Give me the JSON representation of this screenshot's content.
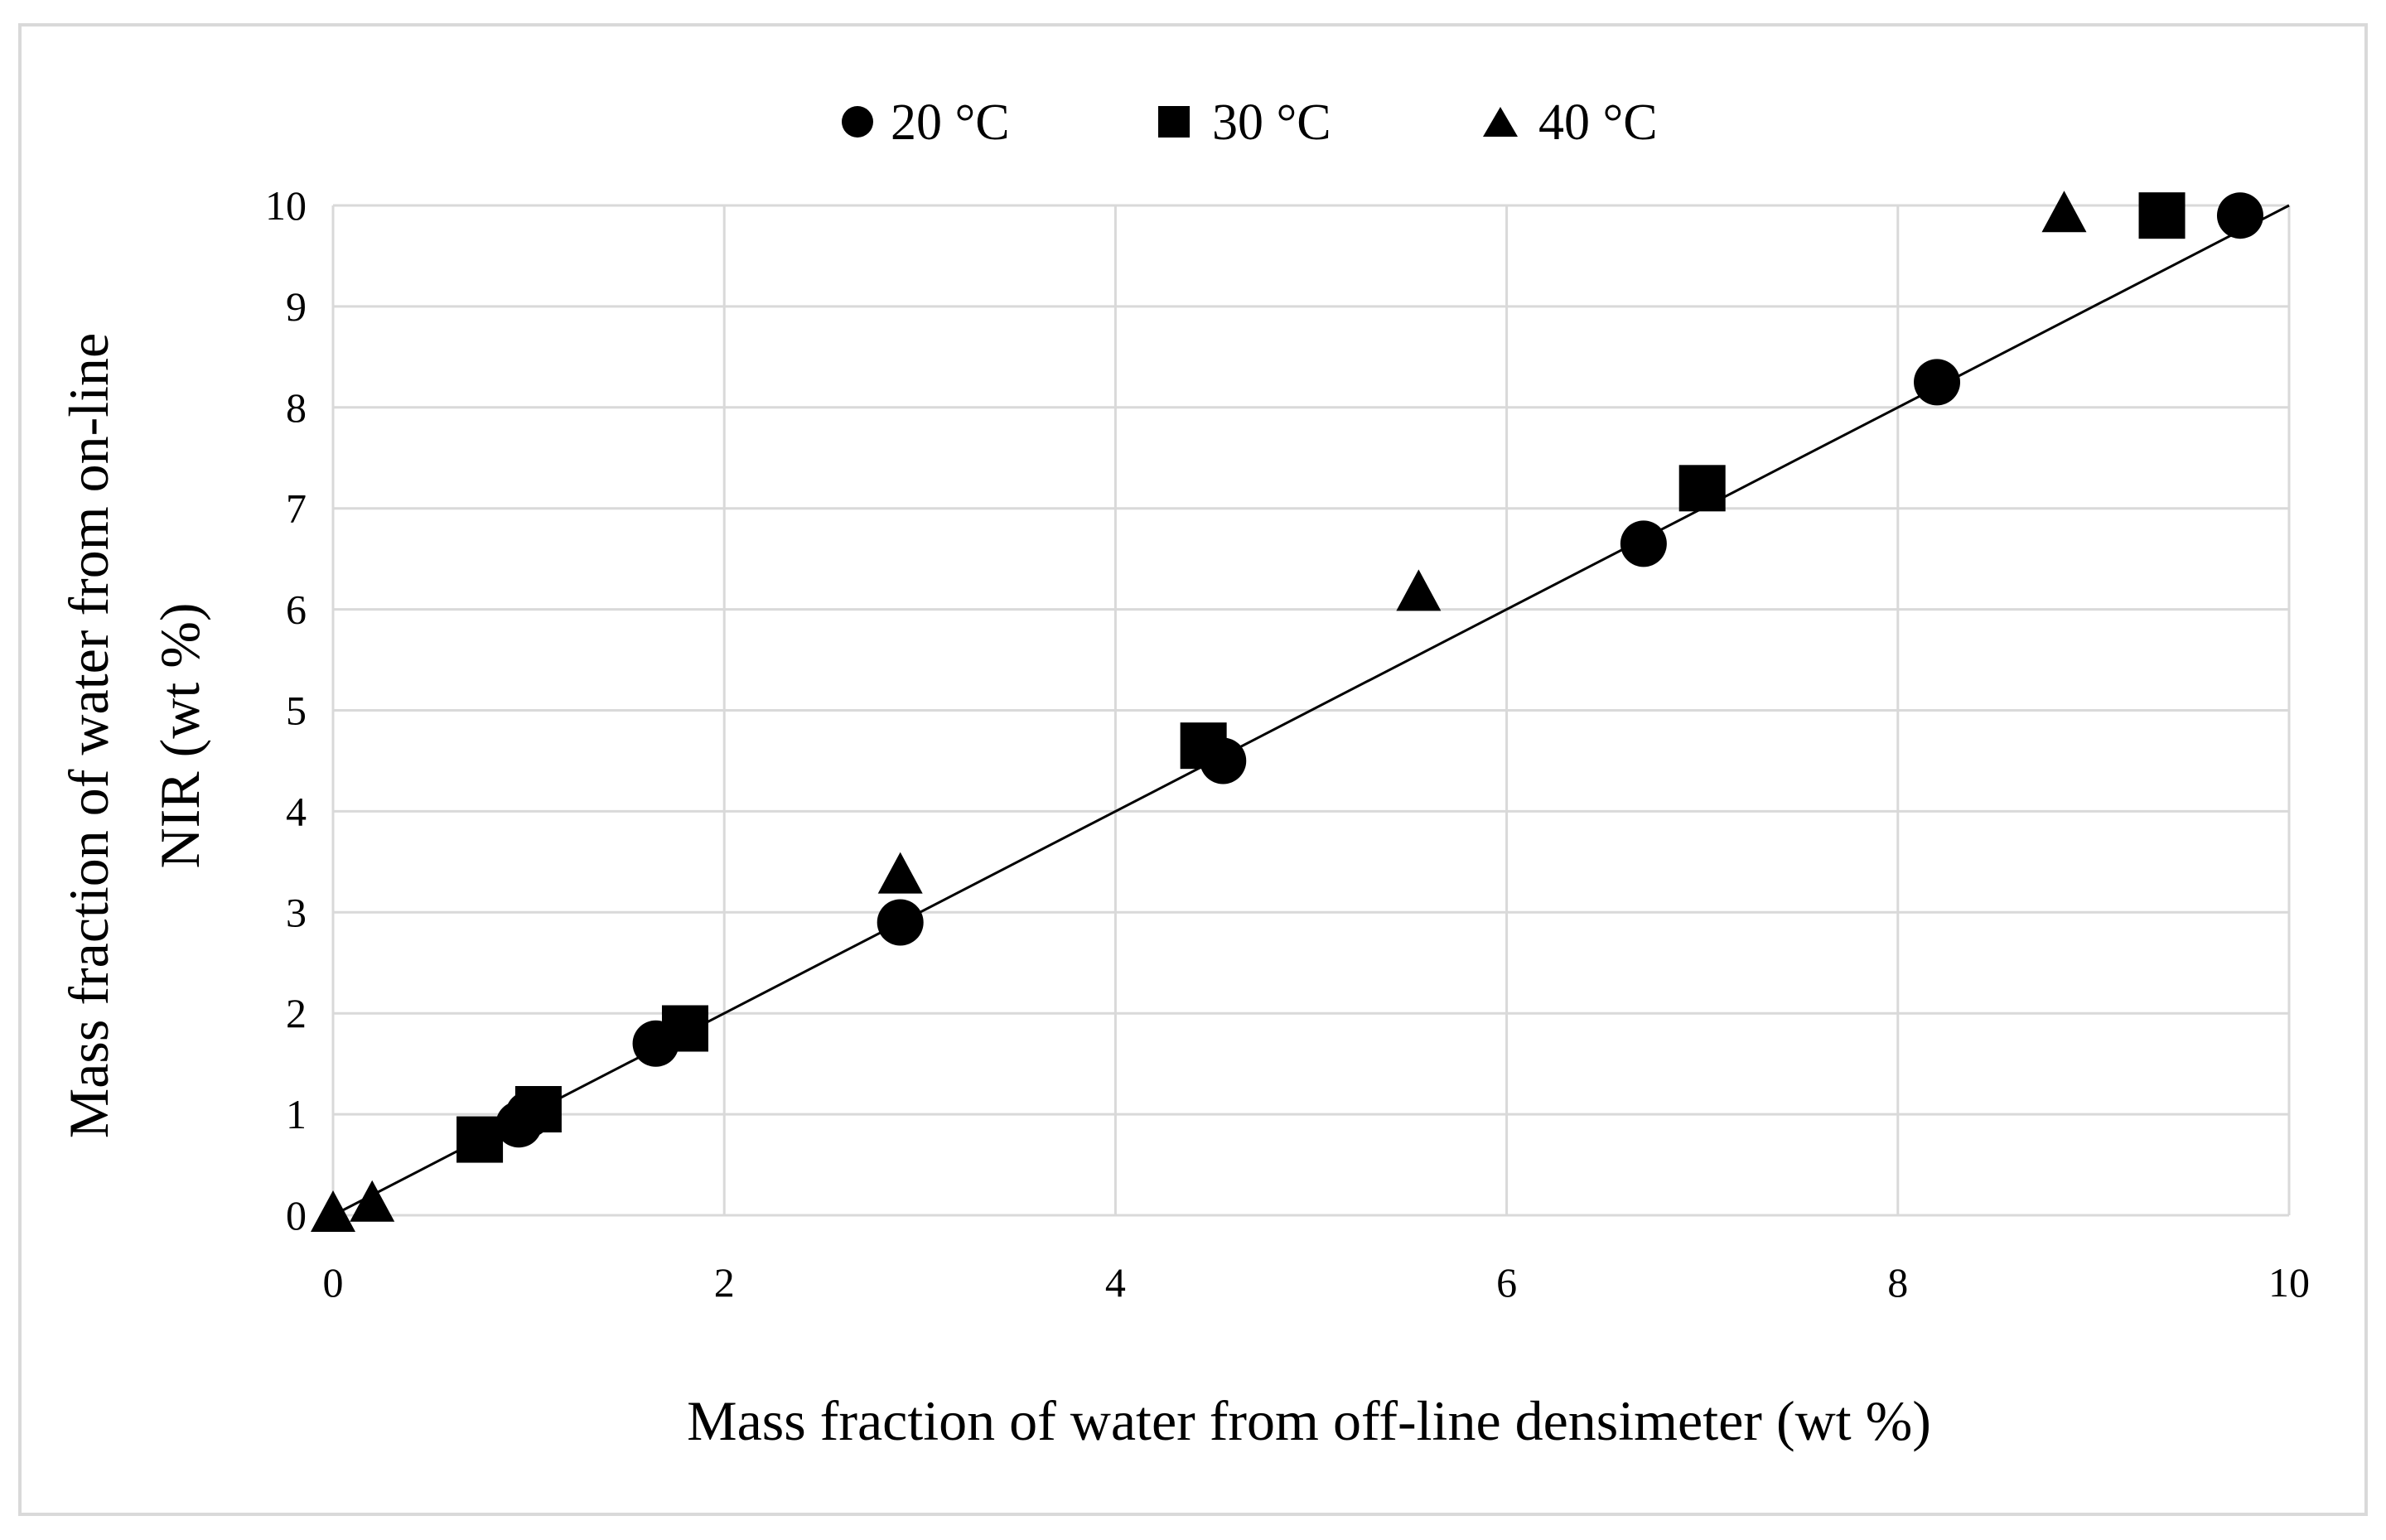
{
  "chart_data": {
    "type": "scatter",
    "title": "",
    "xlabel": "Mass fraction of water from off-line densimeter (wt %)",
    "ylabel_lines": [
      "Mass fraction of water from on-line",
      "NIR (wt %)"
    ],
    "xlim": [
      0,
      10
    ],
    "ylim": [
      0,
      10
    ],
    "xticks": [
      0,
      2,
      4,
      6,
      8,
      10
    ],
    "yticks": [
      0,
      1,
      2,
      3,
      4,
      5,
      6,
      7,
      8,
      9,
      10
    ],
    "grid": true,
    "legend_position": "top-center",
    "series": [
      {
        "name": "20 °C",
        "marker": "circle",
        "points": [
          {
            "x": 0.95,
            "y": 0.9
          },
          {
            "x": 1.0,
            "y": 1.0
          },
          {
            "x": 1.65,
            "y": 1.7
          },
          {
            "x": 2.9,
            "y": 2.9
          },
          {
            "x": 4.55,
            "y": 4.5
          },
          {
            "x": 6.7,
            "y": 6.65
          },
          {
            "x": 8.2,
            "y": 8.25
          },
          {
            "x": 9.75,
            "y": 9.9
          }
        ]
      },
      {
        "name": "30 °C",
        "marker": "square",
        "points": [
          {
            "x": 0.75,
            "y": 0.75
          },
          {
            "x": 1.05,
            "y": 1.05
          },
          {
            "x": 1.8,
            "y": 1.85
          },
          {
            "x": 4.45,
            "y": 4.65
          },
          {
            "x": 7.0,
            "y": 7.2
          },
          {
            "x": 9.35,
            "y": 9.9
          }
        ]
      },
      {
        "name": "40 °C",
        "marker": "triangle",
        "points": [
          {
            "x": 0.0,
            "y": 0.0
          },
          {
            "x": 0.2,
            "y": 0.1
          },
          {
            "x": 2.9,
            "y": 3.35
          },
          {
            "x": 5.55,
            "y": 6.15
          },
          {
            "x": 8.85,
            "y": 9.9
          }
        ]
      }
    ],
    "reference_line": {
      "name": "y = x",
      "x": [
        0,
        10
      ],
      "y": [
        0,
        10
      ]
    }
  },
  "colors": {
    "marker": "#000000",
    "grid": "#d9d9d9",
    "frame": "#d9d9d9",
    "line": "#000000"
  }
}
